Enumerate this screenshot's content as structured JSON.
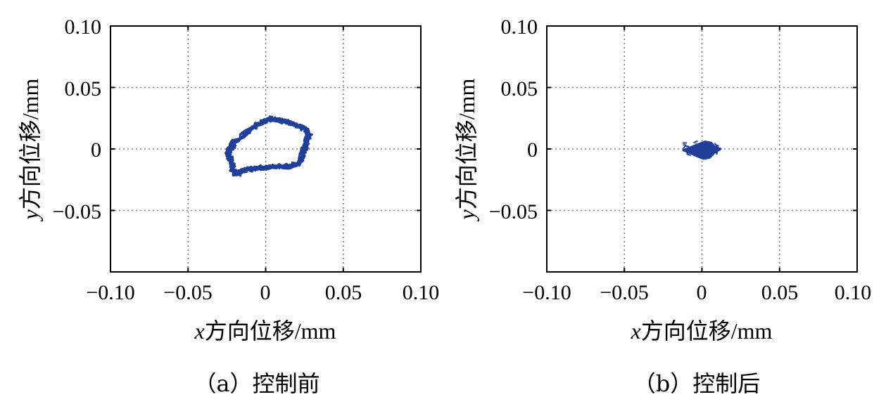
{
  "chart_data": [
    {
      "type": "scatter",
      "xlabel": {
        "var": "x",
        "text": "方向位移/mm"
      },
      "ylabel": {
        "var": "y",
        "text": "方向位移/mm"
      },
      "xlim": [
        -0.1,
        0.1
      ],
      "ylim": [
        -0.1,
        0.1
      ],
      "x_ticks": [
        "−0.10",
        "−0.05",
        "0",
        "0.05",
        "0.10"
      ],
      "y_ticks": [
        "0.10",
        "0.05",
        "0",
        "−0.05"
      ],
      "grid": true,
      "caption": "（a）控制前",
      "color": "#1f3f99",
      "series": [
        {
          "shape": "loop",
          "outline": [
            [
              -0.024,
              -0.002
            ],
            [
              -0.02,
              0.006
            ],
            [
              -0.012,
              0.014
            ],
            [
              -0.004,
              0.021
            ],
            [
              0.003,
              0.025
            ],
            [
              0.01,
              0.023
            ],
            [
              0.018,
              0.021
            ],
            [
              0.026,
              0.016
            ],
            [
              0.028,
              0.011
            ],
            [
              0.026,
              0.004
            ],
            [
              0.024,
              -0.004
            ],
            [
              0.022,
              -0.011
            ],
            [
              0.016,
              -0.014
            ],
            [
              0.008,
              -0.014
            ],
            [
              0.0,
              -0.015
            ],
            [
              -0.008,
              -0.016
            ],
            [
              -0.014,
              -0.017
            ],
            [
              -0.018,
              -0.021
            ],
            [
              -0.021,
              -0.018
            ],
            [
              -0.022,
              -0.011
            ],
            [
              -0.024,
              -0.006
            ]
          ]
        }
      ]
    },
    {
      "type": "scatter",
      "xlabel": {
        "var": "x",
        "text": "方向位移/mm"
      },
      "ylabel": {
        "var": "y",
        "text": "方向位移/mm"
      },
      "xlim": [
        -0.1,
        0.1
      ],
      "ylim": [
        -0.1,
        0.1
      ],
      "x_ticks": [
        "−0.10",
        "−0.05",
        "0",
        "0.05",
        "0.10"
      ],
      "y_ticks": [
        "0.10",
        "0.05",
        "0",
        "−0.05"
      ],
      "grid": true,
      "caption": "（b）控制后",
      "color": "#1f3f99",
      "series": [
        {
          "shape": "cluster",
          "outline": [
            [
              -0.012,
              -0.001
            ],
            [
              -0.006,
              0.002
            ],
            [
              -0.002,
              0.004
            ],
            [
              0.002,
              0.006
            ],
            [
              0.006,
              0.005
            ],
            [
              0.008,
              0.002
            ],
            [
              0.012,
              0.0
            ],
            [
              0.008,
              -0.003
            ],
            [
              0.005,
              -0.007
            ],
            [
              0.001,
              -0.008
            ],
            [
              -0.003,
              -0.006
            ],
            [
              -0.008,
              -0.003
            ]
          ]
        }
      ]
    }
  ]
}
